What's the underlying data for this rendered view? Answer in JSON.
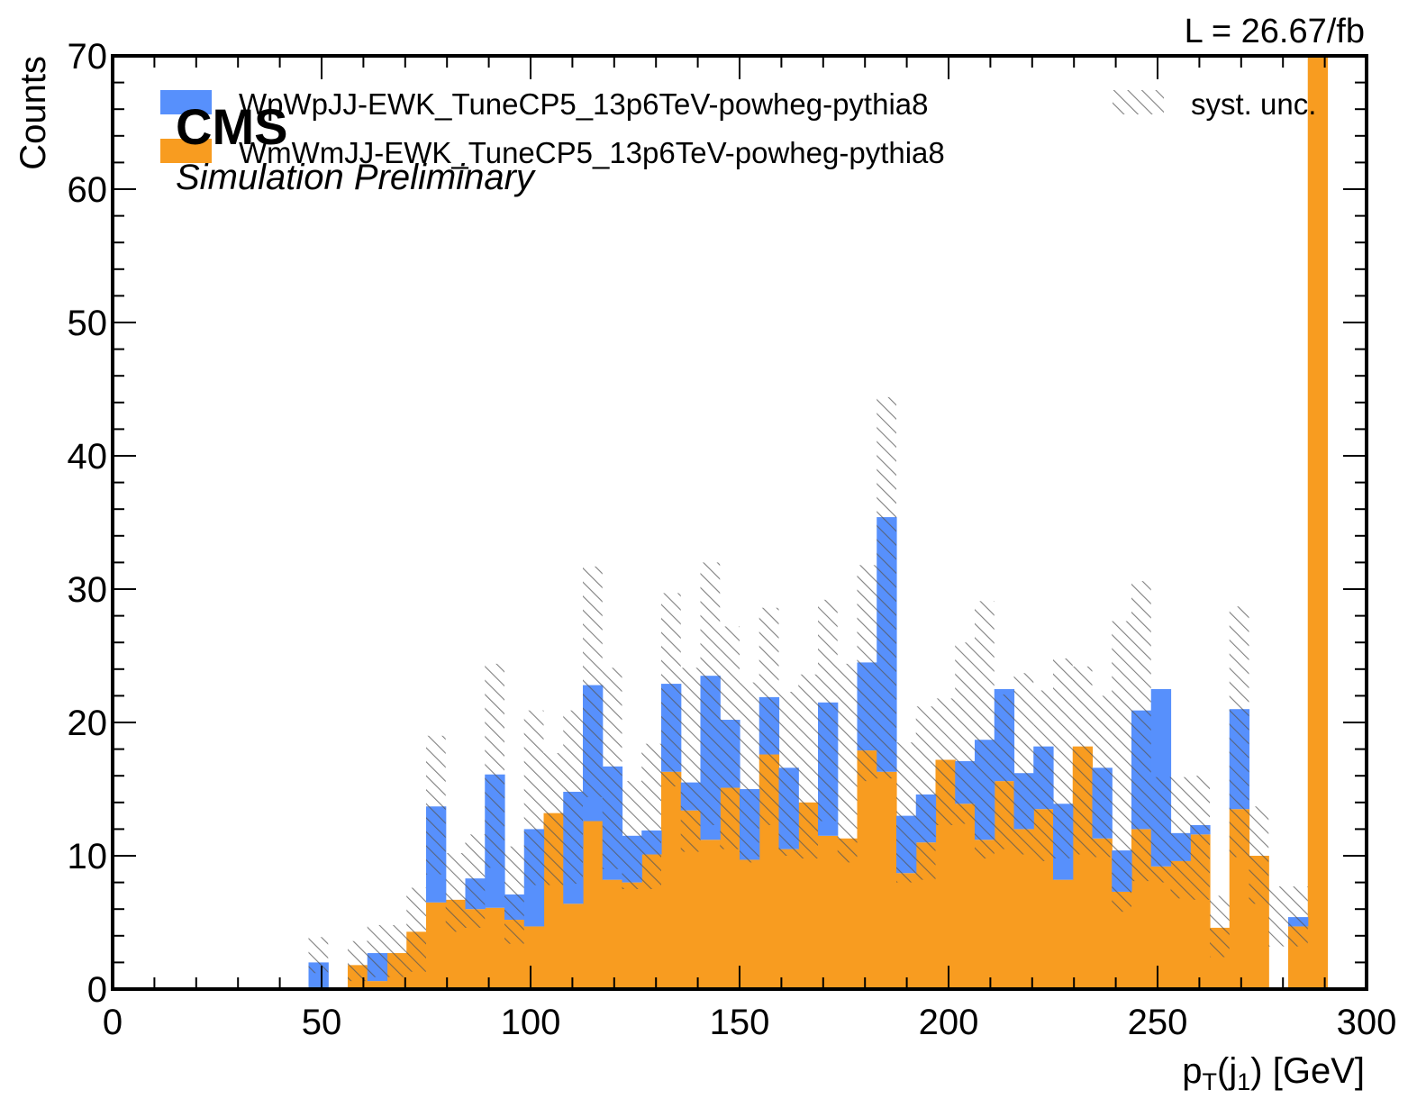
{
  "chart_data": {
    "type": "bar",
    "stacked": true,
    "bin_width": 4.6875,
    "x_start": 0,
    "xlim": [
      0,
      300
    ],
    "ylim": [
      0,
      70
    ],
    "xlabel_main": "p",
    "xlabel_sub": "T",
    "xlabel_mid": "(j",
    "xlabel_sub2": "1",
    "xlabel_end": ") [GeV]",
    "ylabel": "Counts",
    "xticks": [
      0,
      50,
      100,
      150,
      200,
      250,
      300
    ],
    "yticks": [
      0,
      10,
      20,
      30,
      40,
      50,
      60,
      70
    ],
    "xtick_labels": [
      "0",
      "50",
      "100",
      "150",
      "200",
      "250",
      "300"
    ],
    "ytick_labels": [
      "0",
      "10",
      "20",
      "30",
      "40",
      "50",
      "60",
      "70"
    ],
    "experiment_label": "CMS",
    "status_label": "Simulation Preliminary",
    "lumi_label": "L = 26.67/fb",
    "legend_position": "top",
    "series": [
      {
        "name": "WmWmJJ-EWK_TuneCP5_13p6TeV-powheg-pythia8",
        "color": "#f89c20",
        "values": [
          0,
          0,
          0,
          0,
          0,
          0,
          0,
          0,
          0,
          0,
          0,
          0,
          1.8,
          0.6,
          2.7,
          4.3,
          6.5,
          6.7,
          6.0,
          6.1,
          5.2,
          4.7,
          13.2,
          6.4,
          12.6,
          8.2,
          8.0,
          10.1,
          16.3,
          13.4,
          11.2,
          15.1,
          9.7,
          17.6,
          10.5,
          14.0,
          11.5,
          11.3,
          17.9,
          16.3,
          8.7,
          11.0,
          17.2,
          13.9,
          11.2,
          15.6,
          12.0,
          13.5,
          8.2,
          18.2,
          11.3,
          7.3,
          12.0,
          9.2,
          9.6,
          11.6,
          4.6,
          13.5,
          10.0,
          0,
          4.7,
          70
        ]
      },
      {
        "name": "WpWpJJ-EWK_TuneCP5_13p6TeV-powheg-pythia8",
        "color": "#5790fc",
        "values": [
          0,
          0,
          0,
          0,
          0,
          0,
          0,
          0,
          0,
          0,
          2.0,
          0,
          0,
          2.1,
          0,
          0,
          7.2,
          0,
          2.3,
          10.0,
          1.9,
          7.3,
          0,
          8.4,
          10.2,
          8.5,
          3.5,
          1.8,
          6.6,
          2.1,
          12.3,
          5.1,
          5.3,
          4.3,
          6.1,
          0,
          10.0,
          0,
          6.6,
          19.1,
          4.3,
          3.6,
          0,
          3.2,
          7.5,
          6.9,
          4.2,
          4.7,
          5.7,
          0,
          5.3,
          3.1,
          8.9,
          13.3,
          2.1,
          0.7,
          0,
          7.5,
          0,
          0,
          0.7,
          0
        ]
      }
    ],
    "uncertainty": {
      "name": "syst. unc.",
      "upper": [
        0,
        0,
        0,
        0,
        0,
        0,
        0,
        0,
        0,
        0,
        3.9,
        0,
        3.6,
        4.8,
        4.8,
        7.6,
        19.0,
        10.2,
        11.6,
        24.4,
        10.7,
        20.9,
        17.7,
        20.9,
        31.7,
        24.1,
        15.6,
        18.4,
        29.7,
        24.1,
        32.0,
        27.2,
        23.0,
        28.6,
        22.3,
        23.6,
        29.2,
        24.4,
        31.8,
        44.4,
        18.5,
        21.2,
        21.8,
        26.0,
        29.1,
        22.1,
        23.7,
        22.4,
        24.8,
        24.2,
        22.0,
        27.6,
        30.6,
        15.9,
        15.9,
        16.0,
        7.0,
        28.7,
        13.7,
        7.7,
        7.7,
        70
      ],
      "lower": [
        0,
        0,
        0,
        0,
        0,
        0,
        0,
        0,
        0,
        0,
        1.2,
        0,
        0.6,
        0.9,
        0.9,
        1.3,
        8.6,
        4.3,
        4.6,
        9.1,
        3.4,
        7.8,
        7.8,
        7.9,
        14.4,
        9.0,
        7.5,
        7.5,
        15.2,
        10.3,
        12.3,
        10.5,
        9.5,
        12.3,
        10.0,
        9.8,
        12.6,
        9.5,
        15.6,
        15.8,
        8.0,
        8.2,
        12.3,
        12.4,
        9.8,
        10.5,
        10.1,
        9.6,
        9.8,
        10.1,
        9.9,
        5.8,
        8.1,
        8.0,
        6.8,
        6.7,
        2.4,
        9.9,
        6.4,
        3.2,
        3.2,
        70
      ]
    }
  }
}
